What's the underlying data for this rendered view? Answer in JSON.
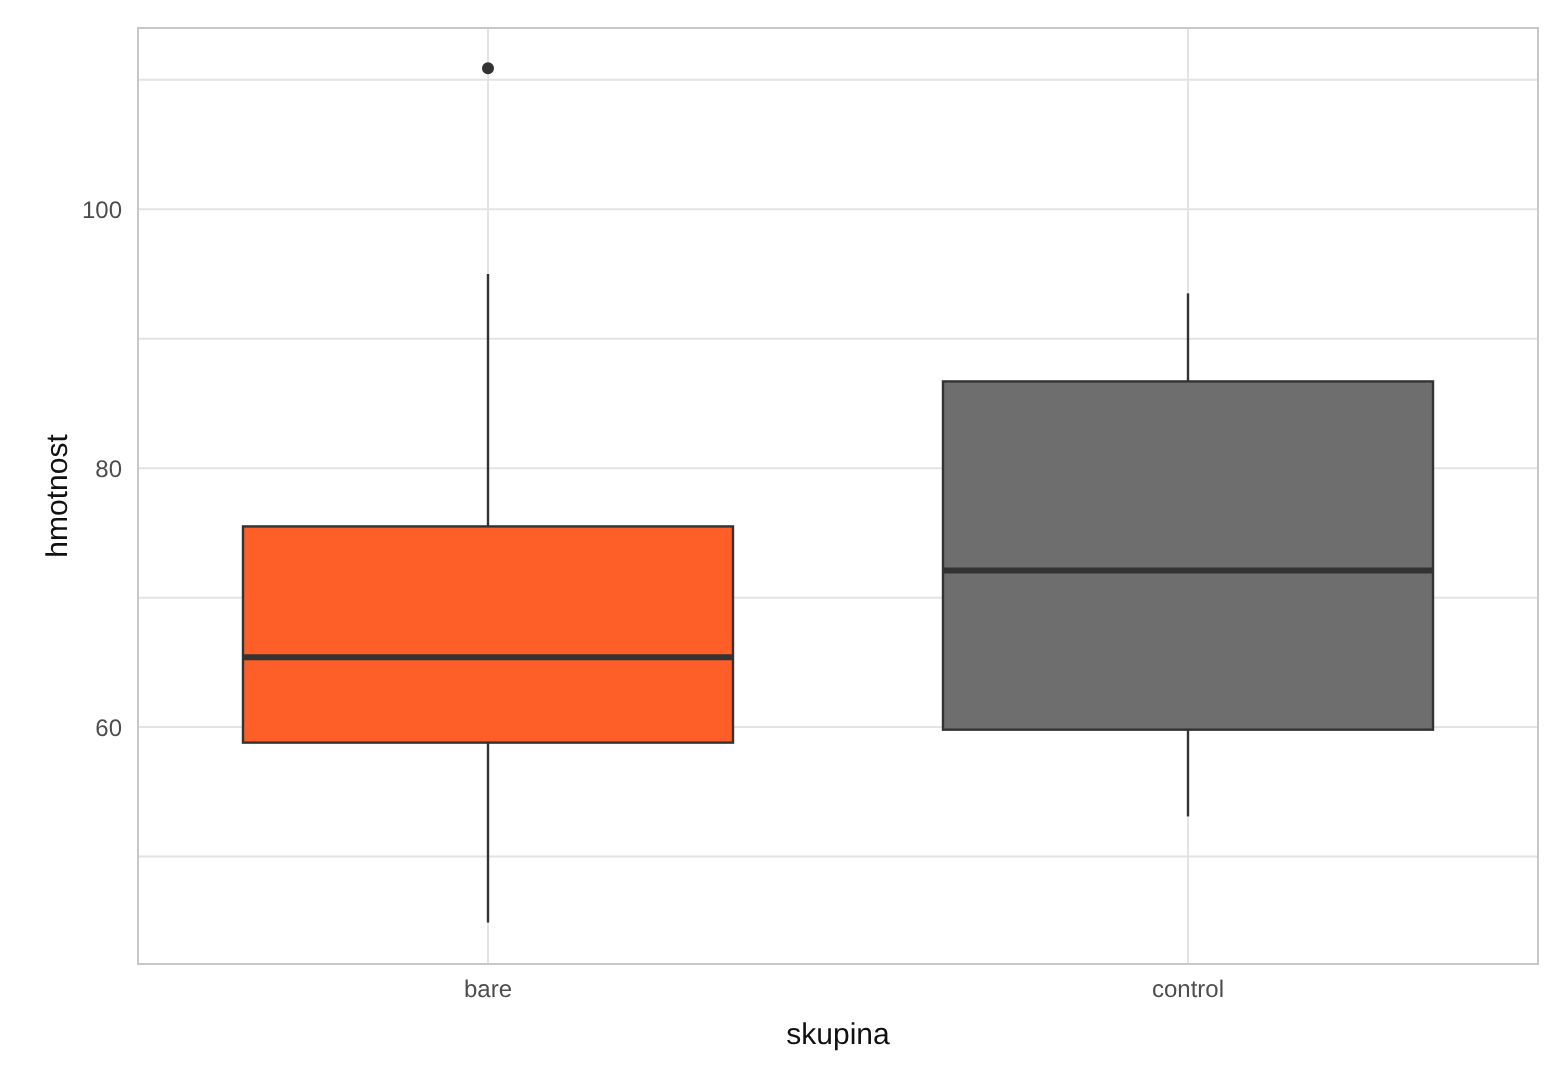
{
  "chart_data": {
    "type": "box",
    "xlabel": "skupina",
    "ylabel": "hmotnost",
    "categories": [
      "bare",
      "control"
    ],
    "colors": [
      "#fe5f28",
      "#6e6e6e"
    ],
    "boxes": [
      {
        "low": 44.9,
        "q1": 58.8,
        "median": 65.4,
        "q3": 75.5,
        "high": 95.0,
        "outliers": [
          110.9
        ]
      },
      {
        "low": 53.1,
        "q1": 59.8,
        "median": 72.1,
        "q3": 86.7,
        "high": 93.5
      }
    ],
    "ylim": [
      41.7,
      114
    ],
    "yticks": [
      {
        "value": 50,
        "label": null
      },
      60,
      {
        "value": 70,
        "label": null
      },
      80,
      {
        "value": 90,
        "label": null
      },
      100,
      {
        "value": 110,
        "label": null
      }
    ],
    "grid": true,
    "legend": false
  }
}
